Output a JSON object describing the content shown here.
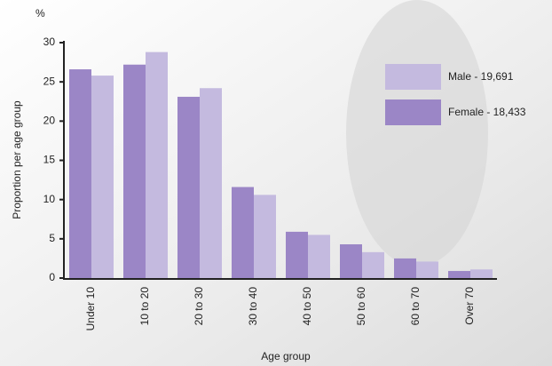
{
  "chart_data": {
    "type": "bar",
    "y_unit": "%",
    "y_axis_label": "Proportion per age group",
    "x_axis_label": "Age group",
    "categories": [
      "Under 10",
      "10 to 20",
      "20 to 30",
      "30 to 40",
      "40 to 50",
      "50 to 60",
      "60 to 70",
      "Over 70"
    ],
    "series": [
      {
        "name": "Female - 18,433",
        "color": "#9b86c6",
        "values": [
          26.6,
          27.2,
          23.1,
          11.6,
          5.9,
          4.3,
          2.5,
          0.9
        ]
      },
      {
        "name": "Male - 19,691",
        "color": "#c4badf",
        "values": [
          25.8,
          28.8,
          24.2,
          10.6,
          5.5,
          3.3,
          2.1,
          1.1
        ]
      }
    ],
    "ylim": [
      0,
      30
    ],
    "yticks": [
      0,
      5,
      10,
      15,
      20,
      25,
      30
    ]
  }
}
